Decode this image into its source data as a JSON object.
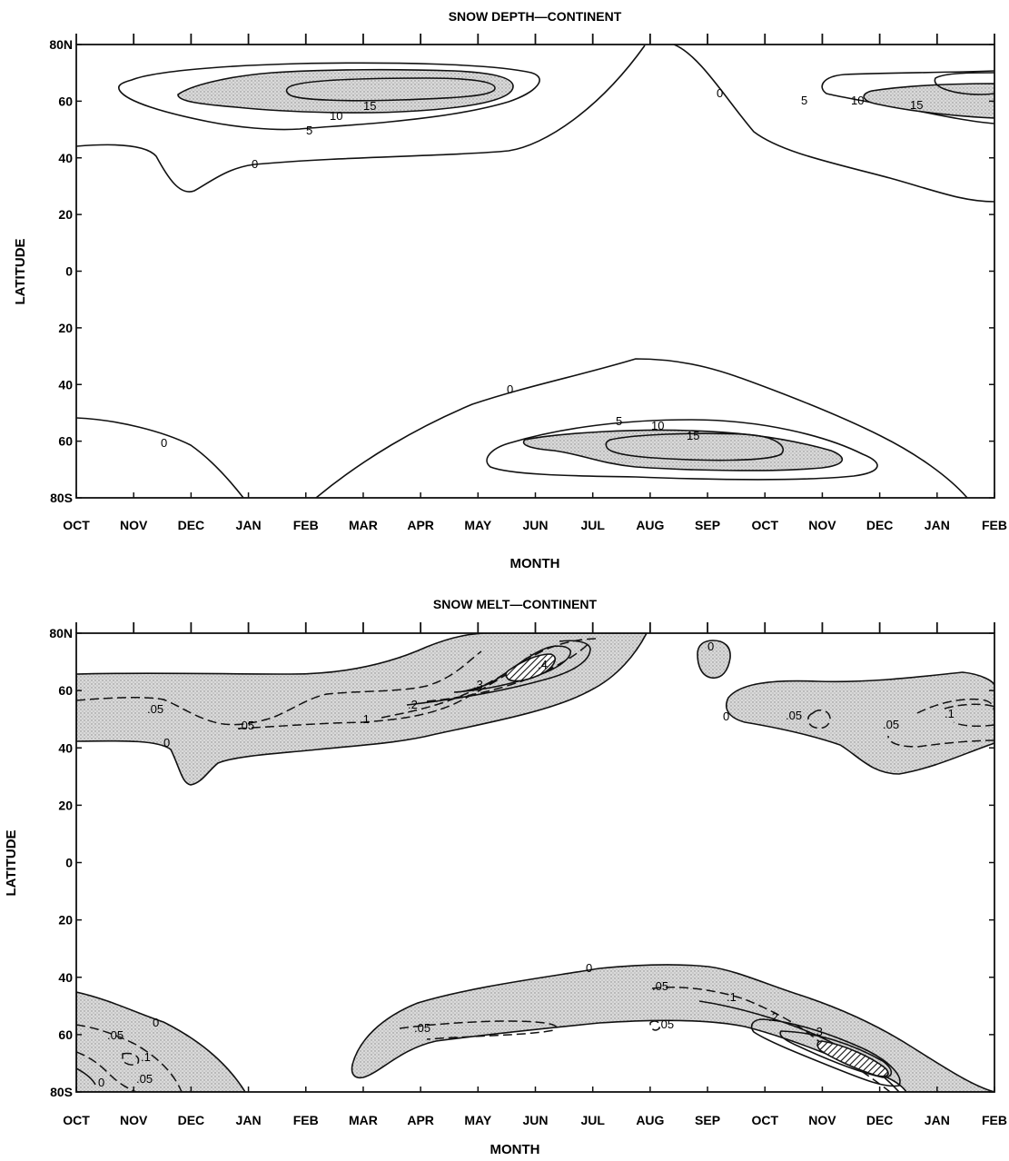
{
  "chart_data": [
    {
      "type": "contour",
      "title": "SNOW DEPTH—CONTINENT",
      "xlabel": "MONTH",
      "ylabel": "LATITUDE",
      "x_ticks": [
        "OCT",
        "NOV",
        "DEC",
        "JAN",
        "FEB",
        "MAR",
        "APR",
        "MAY",
        "JUN",
        "JUL",
        "AUG",
        "SEP",
        "OCT",
        "NOV",
        "DEC",
        "JAN",
        "FEB"
      ],
      "y_ticks": [
        "80N",
        "60",
        "40",
        "20",
        "0",
        "20",
        "40",
        "60",
        "80S"
      ],
      "ylim": [
        -80,
        80
      ],
      "shading": "stippled where snow depth exceeds 10",
      "contour_labels": [
        "0",
        "5",
        "10",
        "15",
        "0",
        "5",
        "10",
        "15",
        "0",
        "5",
        "10",
        "15",
        "0",
        "0"
      ],
      "contour_levels": [
        0,
        5,
        10,
        15
      ]
    },
    {
      "type": "contour",
      "title": "SNOW MELT—CONTINENT",
      "xlabel": "MONTH",
      "ylabel": "LATITUDE",
      "x_ticks": [
        "OCT",
        "NOV",
        "DEC",
        "JAN",
        "FEB",
        "MAR",
        "APR",
        "MAY",
        "JUN",
        "JUL",
        "AUG",
        "SEP",
        "OCT",
        "NOV",
        "DEC",
        "JAN",
        "FEB"
      ],
      "y_ticks": [
        "80N",
        "60",
        "40",
        "20",
        "0",
        "20",
        "40",
        "60",
        "80S"
      ],
      "ylim": [
        -80,
        80
      ],
      "shading": "stippled where snow melt is nonzero; hatched where above .3",
      "contour_labels": [
        ".05",
        ".05",
        ".1",
        ".2",
        ".3",
        ".4",
        "0",
        "0",
        "0",
        ".05",
        ".05",
        ".1",
        "0",
        ".05",
        ".1",
        ".05",
        "0",
        "0",
        ".05",
        ".05",
        ".05",
        ".1",
        ".2",
        ".3"
      ],
      "contour_levels": [
        0,
        0.05,
        0.1,
        0.2,
        0.3,
        0.4
      ]
    }
  ],
  "colors": {
    "ink": "#111111",
    "stipple": "#d2d2d2",
    "background": "#ffffff"
  }
}
